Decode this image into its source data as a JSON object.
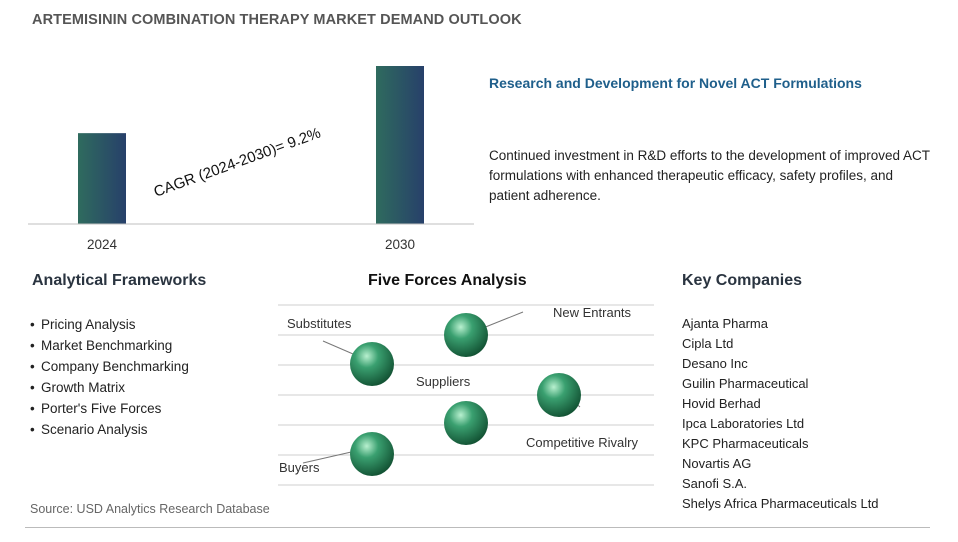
{
  "title": "ARTEMISININ COMBINATION THERAPY MARKET DEMAND OUTLOOK",
  "chart_data": {
    "type": "bar",
    "categories": [
      "2024",
      "2030"
    ],
    "relative_heights": [
      0.575,
      1.0
    ],
    "annotation": "CAGR (2024-2030)=  9.2%",
    "bar_gradient": [
      "#2f6b5e",
      "#27406a"
    ]
  },
  "rd": {
    "heading": "Research and Development for Novel ACT Formulations",
    "text": "Continued investment in R&D efforts to the development of improved ACT formulations with enhanced therapeutic efficacy, safety profiles, and patient adherence."
  },
  "frameworks": {
    "heading": "Analytical Frameworks",
    "items": [
      "Pricing Analysis",
      "Market Benchmarking",
      "Company Benchmarking",
      "Growth Matrix",
      "Porter's Five Forces",
      "Scenario Analysis"
    ]
  },
  "five_forces": {
    "heading": "Five Forces Analysis",
    "labels": {
      "substitutes": "Substitutes",
      "new_entrants": "New Entrants",
      "suppliers": "Suppliers",
      "competitive_rivalry": "Competitive Rivalry",
      "buyers": "Buyers"
    },
    "sphere_color": "#3aa070"
  },
  "companies": {
    "heading": "Key Companies",
    "items": [
      "Ajanta Pharma",
      "Cipla Ltd",
      "Desano Inc",
      "Guilin Pharmaceutical",
      "Hovid Berhad",
      "Ipca Laboratories Ltd",
      "KPC Pharmaceuticals",
      "Novartis AG",
      "Sanofi S.A.",
      "Shelys Africa Pharmaceuticals Ltd"
    ]
  },
  "source": "Source: USD Analytics Research Database"
}
